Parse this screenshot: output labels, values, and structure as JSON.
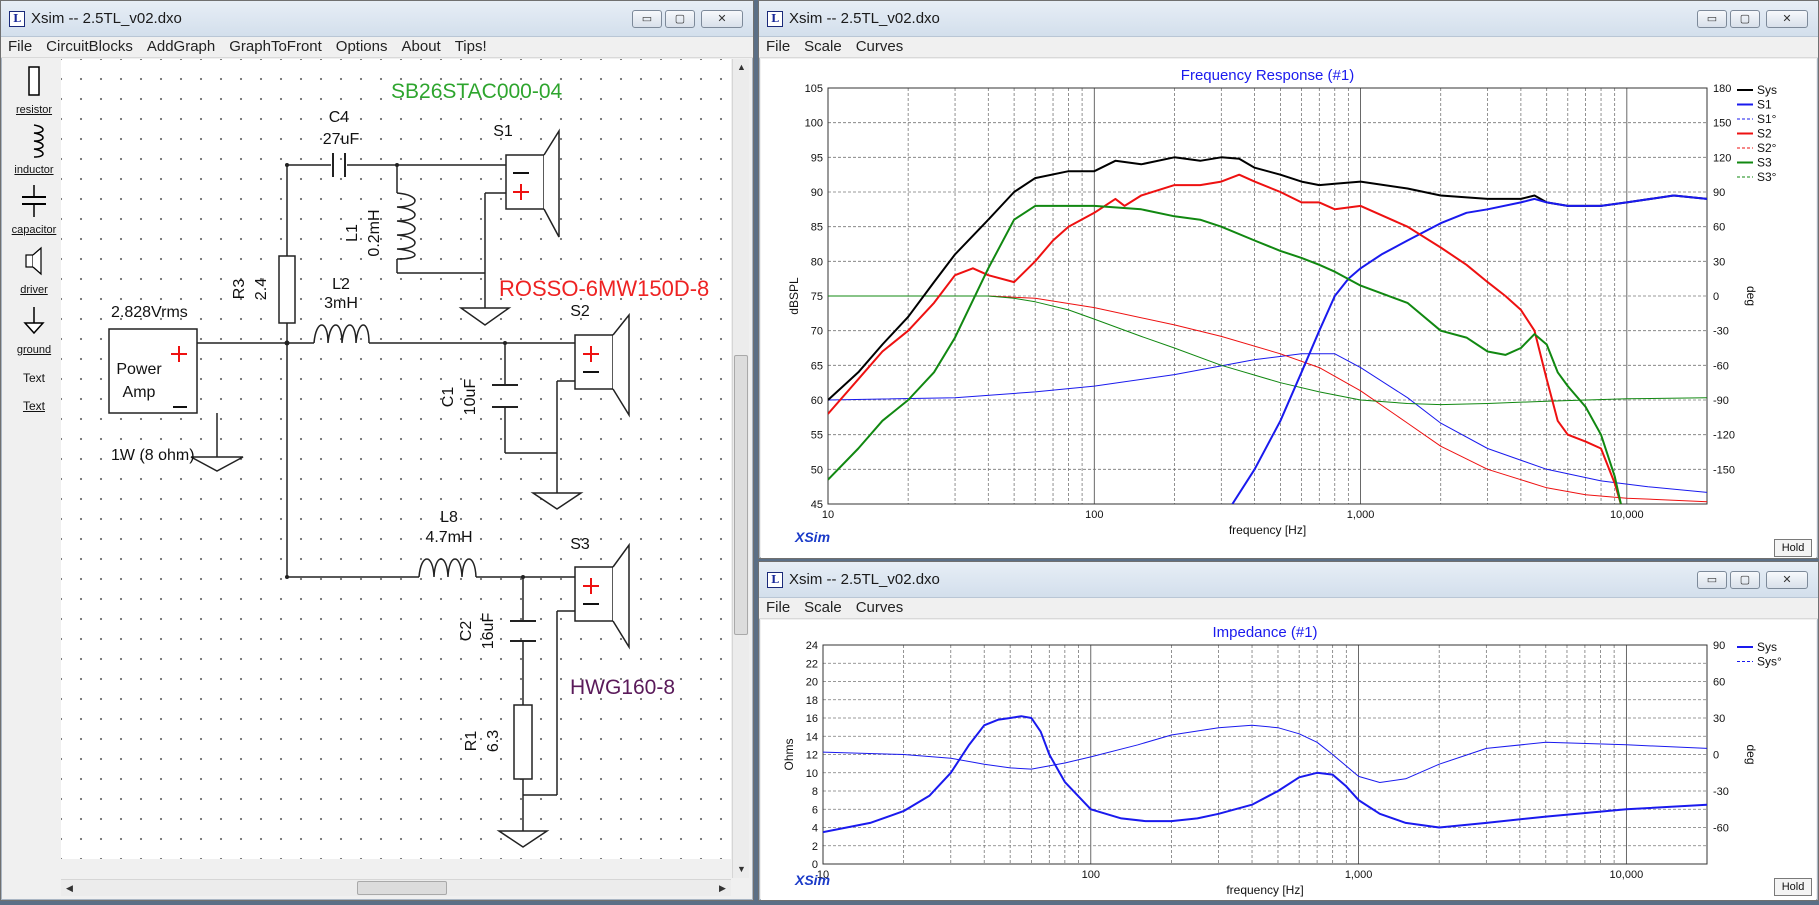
{
  "windows": {
    "schematic": {
      "title": "Xsim -- 2.5TL_v02.dxo",
      "menu": [
        "File",
        "CircuitBlocks",
        "AddGraph",
        "GraphToFront",
        "Options",
        "About",
        "Tips!"
      ],
      "toolbox": [
        "resistor",
        "inductor",
        "capacitor",
        "driver",
        "ground",
        "Text",
        "Text"
      ]
    },
    "frequency": {
      "title": "Xsim -- 2.5TL_v02.dxo",
      "menu": [
        "File",
        "Scale",
        "Curves"
      ]
    },
    "impedance": {
      "title": "Xsim -- 2.5TL_v02.dxo",
      "menu": [
        "File",
        "Scale",
        "Curves"
      ]
    }
  },
  "window_buttons": {
    "minimize": "▭",
    "maximize": "▢",
    "close": "✕"
  },
  "schematic": {
    "drivers": {
      "tweeter": "SB26STAC000-04",
      "mid": "ROSSO-6MW150D-8",
      "woofer": "HWG160-8"
    },
    "labels": {
      "S1": "S1",
      "S2": "S2",
      "S3": "S3",
      "C4": "C4",
      "C4_val": "27uF",
      "L1": "L1",
      "L1_val": "0.2mH",
      "R3": "R3",
      "R3_val": "2.4",
      "L2": "L2",
      "L2_val": "3mH",
      "C1": "C1",
      "C1_val": "10uF",
      "L8": "L8",
      "L8_val": "4.7mH",
      "C2": "C2",
      "C2_val": "16uF",
      "R1": "R1",
      "R1_val": "6.3",
      "amp_voltage": "2.828Vrms",
      "amp_name_1": "Power",
      "amp_name_2": "Amp",
      "amp_power": "1W (8 ohm)"
    },
    "colors": {
      "tweeter": "#2ea52e",
      "mid": "#ee2222",
      "woofer": "#5a1a5a",
      "plus": "#ee1111"
    }
  },
  "graphs": {
    "common": {
      "xsim_label": "XSim",
      "hold_label": "Hold"
    }
  },
  "chart_data": [
    {
      "type": "line",
      "title": "Frequency Response (#1)",
      "xlabel": "frequency [Hz]",
      "ylabel": "dBSPL",
      "y2label": "deg",
      "xscale": "log",
      "xlim": [
        10,
        20000
      ],
      "ylim": [
        45,
        105
      ],
      "y2lim": [
        -180,
        180
      ],
      "xticks": [
        10,
        100,
        1000,
        10000
      ],
      "xtick_labels": [
        "10",
        "100",
        "1,000",
        "10,000"
      ],
      "yticks": [
        45,
        50,
        55,
        60,
        65,
        70,
        75,
        80,
        85,
        90,
        95,
        100,
        105
      ],
      "y2ticks": [
        -150,
        -120,
        -90,
        -60,
        -30,
        0,
        30,
        60,
        90,
        120,
        150,
        180
      ],
      "grid": true,
      "legend": "top-right",
      "series": [
        {
          "name": "Sys",
          "axis": "left",
          "color": "#000000",
          "style": "solid",
          "width": 2,
          "x": [
            10,
            13,
            16,
            20,
            25,
            30,
            40,
            50,
            60,
            80,
            100,
            120,
            150,
            200,
            250,
            300,
            350,
            400,
            500,
            600,
            700,
            800,
            1000,
            1500,
            2000,
            3000,
            4000,
            4500,
            5000,
            6000,
            8000,
            10000,
            15000,
            20000
          ],
          "y": [
            60,
            64,
            68,
            72,
            77,
            81,
            86,
            90,
            92,
            93,
            93,
            94.5,
            94,
            95,
            94.5,
            95,
            94.8,
            93.5,
            92.5,
            91.5,
            91,
            91.2,
            91.5,
            90.5,
            89.5,
            89,
            89,
            89.5,
            88.5,
            88,
            88,
            88.5,
            89.5,
            89
          ]
        },
        {
          "name": "S1",
          "axis": "left",
          "color": "#1a1aee",
          "style": "solid",
          "width": 2,
          "x": [
            330,
            400,
            500,
            600,
            700,
            800,
            900,
            1000,
            1200,
            1500,
            2000,
            2500,
            3000,
            4000,
            4500,
            5000,
            6000,
            8000,
            10000,
            15000,
            20000
          ],
          "y": [
            45,
            50,
            57,
            64,
            70,
            75,
            77.5,
            79,
            81,
            83,
            85.5,
            87,
            87.5,
            88.5,
            89,
            88.5,
            88,
            88,
            88.5,
            89.5,
            89
          ]
        },
        {
          "name": "S1°",
          "axis": "right",
          "color": "#1a1aee",
          "style": "dash",
          "width": 1,
          "x": [
            10,
            30,
            60,
            100,
            200,
            400,
            600,
            800,
            1000,
            1500,
            2000,
            3000,
            5000,
            8000,
            12000,
            20000
          ],
          "y": [
            -90,
            -88,
            -83,
            -78,
            -68,
            -55,
            -50,
            -50,
            -62,
            -88,
            -110,
            -132,
            -150,
            -160,
            -165,
            -170
          ]
        },
        {
          "name": "S2",
          "axis": "left",
          "color": "#ee1111",
          "style": "solid",
          "width": 2,
          "x": [
            10,
            13,
            16,
            20,
            25,
            30,
            35,
            40,
            50,
            60,
            70,
            80,
            100,
            120,
            130,
            150,
            200,
            250,
            300,
            350,
            400,
            500,
            600,
            700,
            800,
            1000,
            1500,
            2000,
            2500,
            3000,
            3500,
            4000,
            4500,
            5000,
            5500,
            6000,
            7000,
            8000,
            9000,
            9500
          ],
          "y": [
            58,
            63,
            67,
            70,
            74,
            78,
            79,
            78,
            77,
            80,
            83,
            85,
            87,
            89,
            88,
            89.5,
            91,
            91,
            91.5,
            92.5,
            91.5,
            90,
            88.5,
            88.5,
            87.5,
            88,
            85,
            82,
            79.5,
            77,
            75,
            73,
            70,
            63,
            57,
            55,
            54,
            53,
            48,
            45
          ]
        },
        {
          "name": "S2°",
          "axis": "right",
          "color": "#ee1111",
          "style": "dash",
          "width": 1,
          "x": [
            10,
            20,
            40,
            60,
            100,
            200,
            300,
            500,
            700,
            1000,
            1500,
            2000,
            3000,
            5000,
            7000,
            10000,
            20000
          ],
          "y": [
            0,
            0,
            0,
            -2,
            -10,
            -25,
            -35,
            -50,
            -62,
            -82,
            -110,
            -130,
            -150,
            -166,
            -172,
            -175,
            -178
          ]
        },
        {
          "name": "S3",
          "axis": "left",
          "color": "#118811",
          "style": "solid",
          "width": 2,
          "x": [
            10,
            13,
            16,
            20,
            25,
            30,
            40,
            50,
            60,
            80,
            100,
            150,
            200,
            250,
            300,
            400,
            500,
            600,
            700,
            800,
            1000,
            1500,
            2000,
            2500,
            3000,
            3500,
            4000,
            4500,
            5000,
            5500,
            6000,
            7000,
            8000,
            9000,
            9500
          ],
          "y": [
            48.5,
            53,
            57,
            60,
            64,
            69,
            79,
            86,
            88,
            88,
            88,
            87.5,
            86.5,
            86,
            85,
            83,
            81.5,
            80.5,
            79.5,
            78.5,
            76.5,
            74,
            70,
            69,
            67,
            66.5,
            67.5,
            69.5,
            68,
            64,
            62,
            59,
            55,
            49,
            45
          ]
        },
        {
          "name": "S3°",
          "axis": "right",
          "color": "#118811",
          "style": "dash",
          "width": 1,
          "x": [
            10,
            20,
            30,
            40,
            50,
            60,
            80,
            100,
            150,
            200,
            300,
            500,
            700,
            1000,
            1500,
            2000,
            3000,
            5000,
            10000,
            20000
          ],
          "y": [
            0,
            0,
            0,
            0,
            -2,
            -5,
            -12,
            -20,
            -35,
            -45,
            -60,
            -75,
            -83,
            -90,
            -93,
            -94,
            -93,
            -91,
            -89,
            -88
          ]
        }
      ]
    },
    {
      "type": "line",
      "title": "Impedance (#1)",
      "xlabel": "frequency [Hz]",
      "ylabel": "Ohms",
      "y2label": "deg",
      "xscale": "log",
      "xlim": [
        10,
        20000
      ],
      "ylim": [
        0,
        24
      ],
      "y2lim": [
        -90,
        90
      ],
      "xticks": [
        10,
        100,
        1000,
        10000
      ],
      "xtick_labels": [
        "10",
        "100",
        "1,000",
        "10,000"
      ],
      "yticks": [
        0,
        2,
        4,
        6,
        8,
        10,
        12,
        14,
        16,
        18,
        20,
        22,
        24
      ],
      "y2ticks": [
        -60,
        -30,
        0,
        30,
        60,
        90
      ],
      "grid": true,
      "legend": "top-right",
      "series": [
        {
          "name": "Sys",
          "axis": "left",
          "color": "#1a1aee",
          "style": "solid",
          "width": 2,
          "x": [
            10,
            15,
            20,
            25,
            30,
            35,
            40,
            45,
            50,
            55,
            60,
            65,
            70,
            80,
            100,
            130,
            160,
            200,
            250,
            300,
            400,
            500,
            600,
            700,
            800,
            900,
            1000,
            1200,
            1500,
            2000,
            3000,
            5000,
            10000,
            20000
          ],
          "y": [
            3.5,
            4.5,
            5.8,
            7.5,
            10,
            13,
            15.2,
            15.8,
            16,
            16.2,
            16,
            14.5,
            12,
            9,
            6,
            5,
            4.7,
            4.7,
            5,
            5.5,
            6.5,
            8,
            9.5,
            10,
            9.8,
            8.5,
            7,
            5.5,
            4.5,
            4,
            4.5,
            5.2,
            6,
            6.5
          ]
        },
        {
          "name": "Sys°",
          "axis": "right",
          "color": "#1a1aee",
          "style": "dash",
          "width": 1,
          "x": [
            10,
            20,
            30,
            40,
            50,
            60,
            80,
            100,
            150,
            200,
            300,
            400,
            500,
            600,
            700,
            800,
            1000,
            1200,
            1500,
            2000,
            3000,
            5000,
            10000,
            20000
          ],
          "y": [
            2,
            0,
            -3,
            -8,
            -11,
            -12,
            -7,
            -2,
            8,
            16,
            22,
            24,
            22,
            17,
            10,
            0,
            -18,
            -23,
            -20,
            -8,
            5,
            10,
            8,
            5
          ]
        }
      ]
    }
  ]
}
